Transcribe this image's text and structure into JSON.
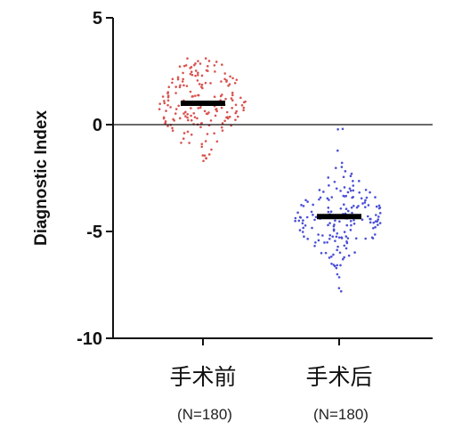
{
  "chart_data": {
    "type": "scatter",
    "title": "",
    "xlabel": "",
    "ylabel": "Diagnostic Index",
    "ylim": [
      -10,
      5
    ],
    "yticks": [
      5,
      0,
      -5,
      -10
    ],
    "grid": false,
    "reference_line_y": 0,
    "categories": [
      "手术前",
      "手术后"
    ],
    "sample_size_labels": [
      "(N=180)",
      "(N=180)"
    ],
    "series": [
      {
        "category": "手术前",
        "n": 180,
        "color": "#d9534f",
        "median": 1.0,
        "max": 3.1,
        "min": -1.7,
        "q1": 0.2,
        "q3": 1.8
      },
      {
        "category": "手术后",
        "n": 180,
        "color": "#4a4fd6",
        "median": -4.3,
        "max": -0.2,
        "min": -7.8,
        "q1": -5.0,
        "q3": -3.5
      }
    ],
    "median_line_color": "#000000"
  }
}
